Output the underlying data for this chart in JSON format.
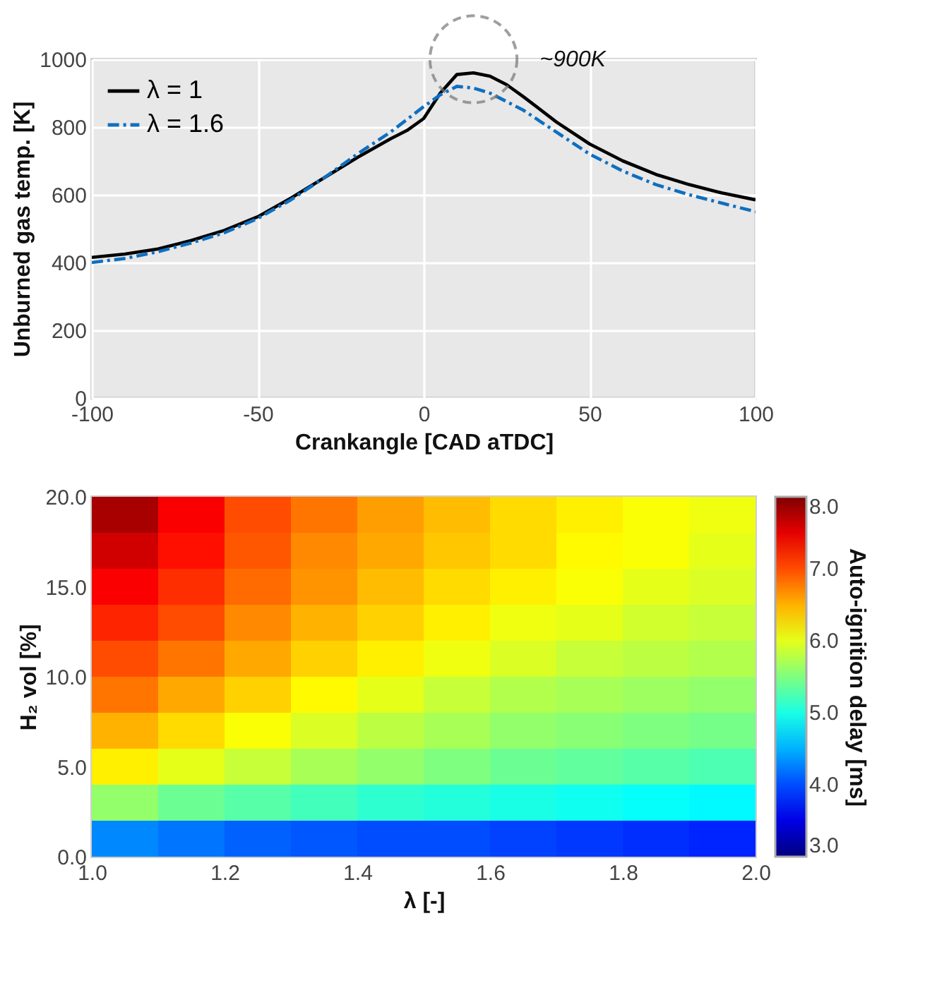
{
  "chart_data": [
    {
      "type": "line",
      "xlabel": "Crankangle [CAD aTDC]",
      "ylabel": "Unburned gas temp. [K]",
      "xlim": [
        -100,
        100
      ],
      "xticks": [
        -100,
        -50,
        0,
        50,
        100
      ],
      "ylim": [
        0,
        1000
      ],
      "yticks": [
        0,
        200,
        400,
        600,
        800,
        1000
      ],
      "grid": true,
      "legend": "top left",
      "series": [
        {
          "name": "λ = 1",
          "color": "#000000",
          "line_style": "solid",
          "x": [
            -100,
            -90,
            -80,
            -70,
            -60,
            -50,
            -40,
            -30,
            -20,
            -10,
            -5,
            0,
            5,
            10,
            15,
            20,
            25,
            30,
            40,
            50,
            60,
            70,
            80,
            90,
            100
          ],
          "values": [
            415,
            425,
            440,
            465,
            495,
            535,
            590,
            650,
            710,
            765,
            790,
            825,
            900,
            955,
            960,
            950,
            925,
            890,
            815,
            750,
            700,
            660,
            630,
            605,
            585
          ]
        },
        {
          "name": "λ = 1.6",
          "color": "#0f6fc0",
          "line_style": "dashed",
          "x": [
            -100,
            -90,
            -80,
            -70,
            -60,
            -50,
            -40,
            -30,
            -20,
            -10,
            0,
            5,
            10,
            15,
            20,
            30,
            40,
            50,
            60,
            70,
            80,
            90,
            100
          ],
          "values": [
            400,
            412,
            432,
            458,
            488,
            530,
            585,
            650,
            720,
            785,
            860,
            895,
            920,
            915,
            900,
            850,
            785,
            720,
            670,
            630,
            600,
            575,
            550
          ]
        }
      ],
      "annotations": [
        "~900K"
      ]
    },
    {
      "type": "heatmap",
      "xlabel": "λ [-]",
      "ylabel": "H₂ vol  [%]",
      "clabel": "Auto-ignition delay [ms]",
      "xlim": [
        1,
        2
      ],
      "xticks": [
        {
          "value": 1,
          "label": "1.0"
        },
        {
          "value": 1.2,
          "label": "1.2"
        },
        {
          "value": 1.4,
          "label": "1.4"
        },
        {
          "value": 1.6,
          "label": "1.6"
        },
        {
          "value": 1.8,
          "label": "1.8"
        },
        {
          "value": 2,
          "label": "2.0"
        }
      ],
      "ylim": [
        0,
        20
      ],
      "yticks": [
        {
          "value": 0,
          "label": "0.0"
        },
        {
          "value": 5,
          "label": "5.0"
        },
        {
          "value": 10,
          "label": "10.0"
        },
        {
          "value": 15,
          "label": "15.0"
        },
        {
          "value": 20,
          "label": "20.0"
        }
      ],
      "clim": [
        3,
        8
      ],
      "cticks": [
        {
          "value": 3,
          "label": "3.0"
        },
        {
          "value": 4,
          "label": "4.0"
        },
        {
          "value": 5,
          "label": "5.0"
        },
        {
          "value": 6,
          "label": "6.0"
        },
        {
          "value": 7,
          "label": "7.0"
        },
        {
          "value": 8,
          "label": "8.0"
        }
      ],
      "cells": [
        [
          7.8,
          7.4,
          7.0,
          6.8,
          6.6,
          6.45,
          6.3,
          6.2,
          6.1,
          6.05
        ],
        [
          7.6,
          7.3,
          6.95,
          6.7,
          6.55,
          6.4,
          6.3,
          6.15,
          6.1,
          6.0
        ],
        [
          7.4,
          7.15,
          6.85,
          6.65,
          6.45,
          6.3,
          6.2,
          6.1,
          6.0,
          5.95
        ],
        [
          7.2,
          7.0,
          6.7,
          6.5,
          6.35,
          6.2,
          6.05,
          6.0,
          5.9,
          5.85
        ],
        [
          7.0,
          6.8,
          6.55,
          6.35,
          6.2,
          6.05,
          5.95,
          5.85,
          5.8,
          5.75
        ],
        [
          6.8,
          6.55,
          6.35,
          6.15,
          6.0,
          5.85,
          5.75,
          5.7,
          5.65,
          5.6
        ],
        [
          6.5,
          6.3,
          6.1,
          5.95,
          5.8,
          5.7,
          5.6,
          5.55,
          5.5,
          5.45
        ],
        [
          6.2,
          6.0,
          5.85,
          5.7,
          5.6,
          5.5,
          5.4,
          5.35,
          5.3,
          5.25
        ],
        [
          5.6,
          5.4,
          5.3,
          5.2,
          5.1,
          5.05,
          5.0,
          4.95,
          4.9,
          4.85
        ],
        [
          4.3,
          4.2,
          4.1,
          4.05,
          4.0,
          4.0,
          3.95,
          3.9,
          3.85,
          3.8
        ]
      ]
    }
  ]
}
